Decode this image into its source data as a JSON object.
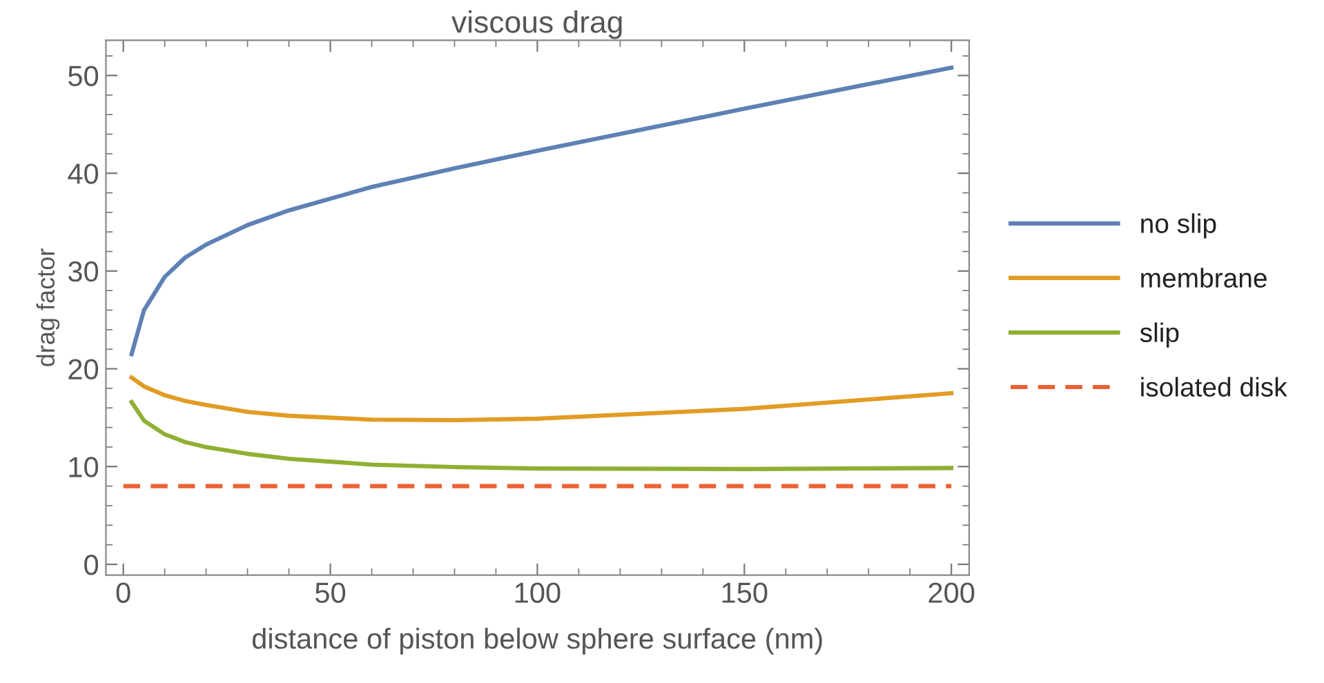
{
  "chart_data": {
    "type": "line",
    "title": "viscous drag",
    "xlabel": "distance of piston below sphere surface (nm)",
    "ylabel": "drag factor",
    "x": [
      2,
      5,
      10,
      15,
      20,
      30,
      40,
      60,
      80,
      100,
      150,
      200
    ],
    "series": [
      {
        "name": "no slip",
        "color": "#5e81b5",
        "values": [
          21.5,
          26,
          29.4,
          31.4,
          32.7,
          34.7,
          36.2,
          38.6,
          40.5,
          42.3,
          46.6,
          50.8
        ]
      },
      {
        "name": "membrane",
        "color": "#e19c24",
        "values": [
          19.1,
          18.2,
          17.3,
          16.7,
          16.3,
          15.6,
          15.2,
          14.8,
          14.75,
          14.9,
          15.9,
          17.5
        ]
      },
      {
        "name": "slip",
        "color": "#8fb032",
        "values": [
          16.6,
          14.7,
          13.3,
          12.5,
          12.0,
          11.3,
          10.8,
          10.2,
          9.95,
          9.8,
          9.75,
          9.85
        ]
      },
      {
        "name": "isolated disk",
        "color": "#eb6235",
        "x": [
          0,
          200
        ],
        "values": [
          8,
          8
        ],
        "line_style": "dashed"
      }
    ],
    "xlim": [
      -4.2,
      204.3
    ],
    "ylim": [
      -1.1,
      53.6
    ],
    "xticks": [
      0,
      50,
      100,
      150,
      200
    ],
    "yticks": [
      0,
      10,
      20,
      30,
      40,
      50
    ],
    "grid": false,
    "legend": "right",
    "marker": "none"
  }
}
